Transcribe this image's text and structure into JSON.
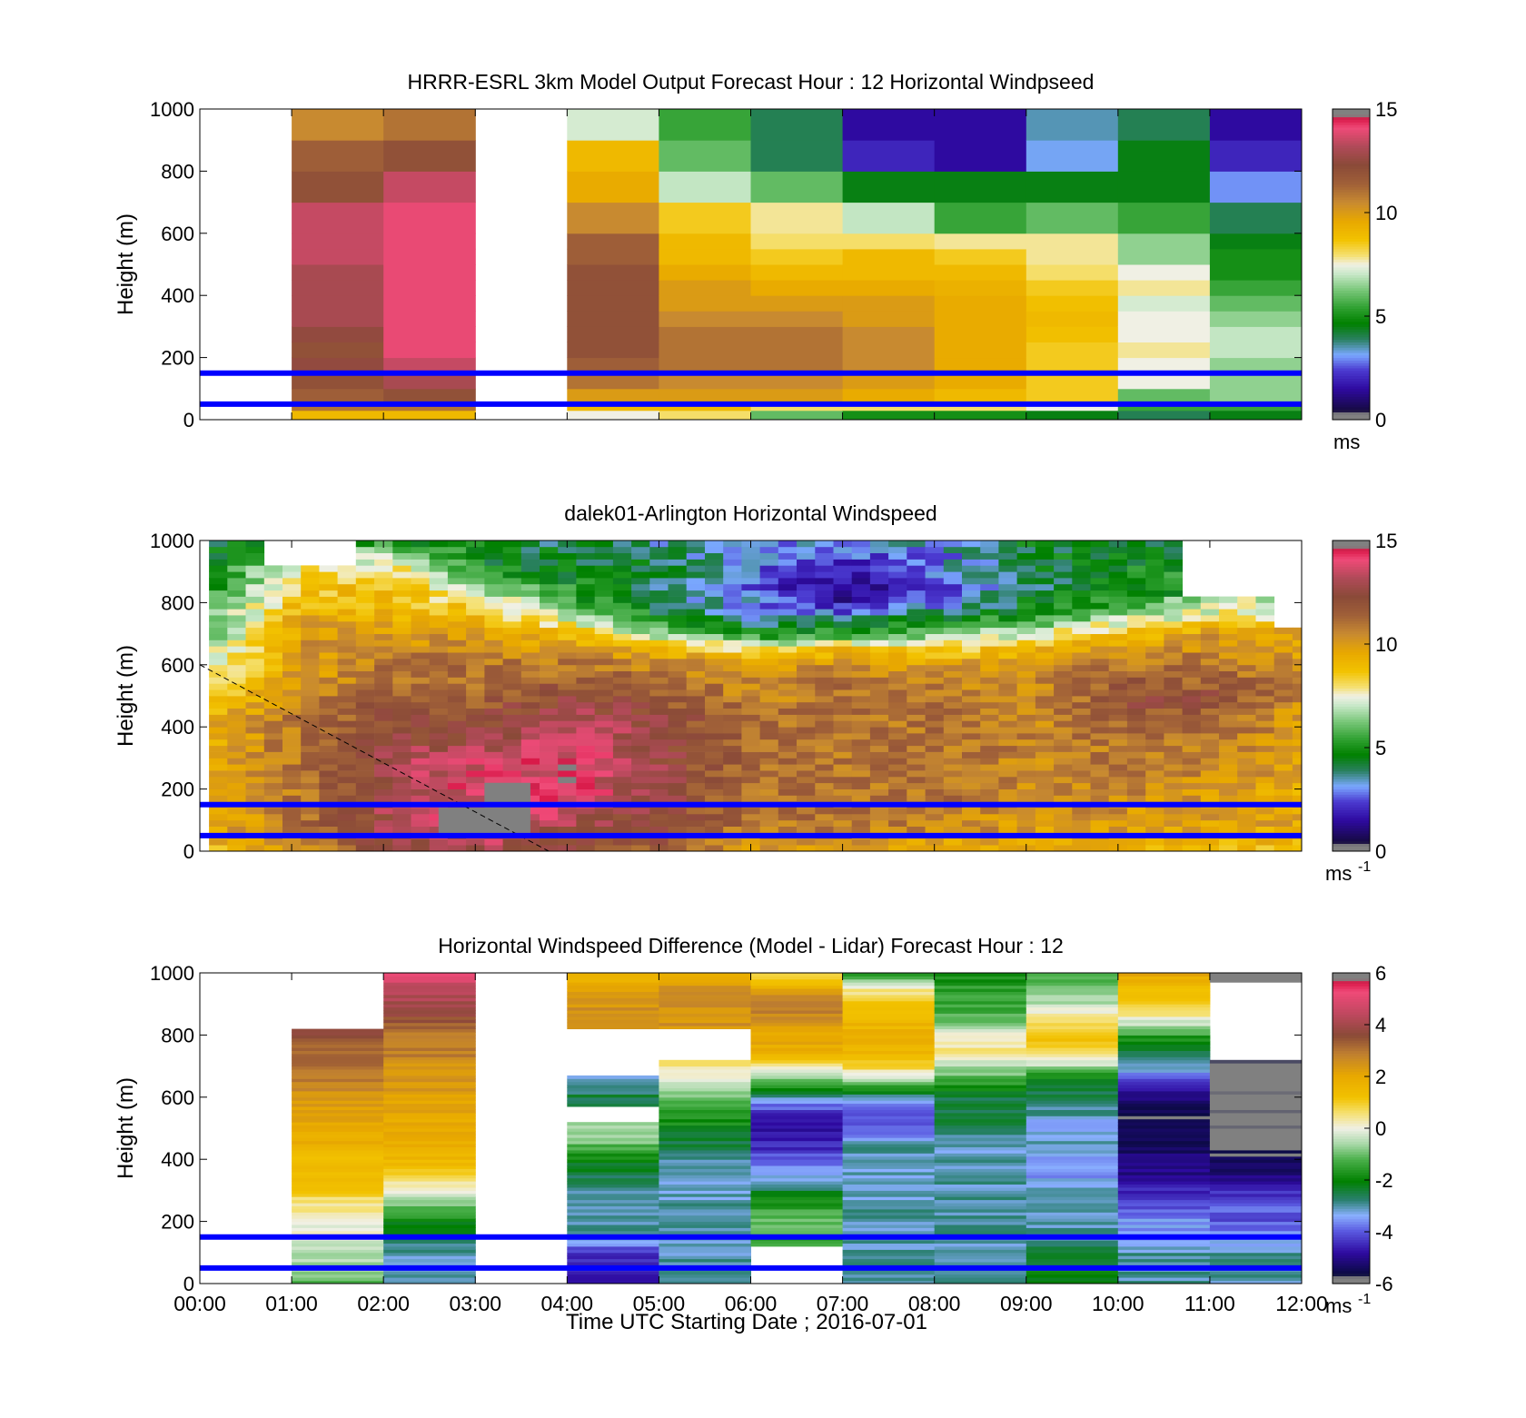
{
  "figure": {
    "xlabel": "Time UTC  Starting Date ; 2016-07-01",
    "x_ticks": [
      "00:00",
      "01:00",
      "02:00",
      "03:00",
      "04:00",
      "05:00",
      "06:00",
      "07:00",
      "08:00",
      "09:00",
      "10:00",
      "11:00",
      "12:00"
    ],
    "background": "#ffffff",
    "reference_line_color": "#0000ff"
  },
  "chart_data": [
    {
      "type": "heatmap",
      "title": "HRRR-ESRL 3km Model Output   Forecast Hour : 12 Horizontal Windpseed",
      "ylabel": "Height (m)",
      "x_range_hours": [
        0,
        12
      ],
      "ylim": [
        0,
        1000
      ],
      "y_ticks": [
        0,
        200,
        400,
        600,
        800,
        1000
      ],
      "colorbar": {
        "label": "ms",
        "label_superscript": "",
        "range": [
          0,
          15
        ],
        "ticks": [
          0,
          5,
          10,
          15
        ]
      },
      "reference_lines_m": [
        50,
        150
      ],
      "cell_boundaries_m": [
        0,
        30,
        60,
        100,
        150,
        200,
        250,
        300,
        350,
        400,
        450,
        500,
        550,
        600,
        700,
        800,
        900,
        1000
      ],
      "columns": [
        {
          "hour": 0,
          "values": null
        },
        {
          "hour": 1,
          "values": [
            9,
            11,
            11.5,
            12,
            12.5,
            12,
            12.5,
            13,
            13,
            13,
            13,
            13.5,
            13.5,
            13.5,
            12,
            11.5,
            10.5
          ]
        },
        {
          "hour": 2,
          "values": [
            9,
            11,
            12,
            13,
            13.5,
            14,
            14,
            14,
            14,
            14,
            14,
            14,
            14,
            14,
            13.5,
            12,
            11
          ]
        },
        {
          "hour": 3,
          "values": null
        },
        {
          "hour": 4,
          "values": [
            7.5,
            9,
            10,
            11,
            11.5,
            12,
            12,
            12,
            12,
            12,
            12,
            11.5,
            11.5,
            10.5,
            9.5,
            9,
            7.2
          ]
        },
        {
          "hour": 5,
          "values": [
            8,
            9,
            10,
            10.5,
            11,
            11,
            11,
            10.5,
            10,
            10,
            9.5,
            9,
            9,
            8.5,
            7,
            6,
            5.5
          ]
        },
        {
          "hour": 6,
          "values": [
            6,
            8,
            10,
            10.5,
            11,
            11,
            11,
            10.5,
            10,
            9.5,
            9,
            8.5,
            8,
            7.8,
            6,
            4,
            4
          ]
        },
        {
          "hour": 7,
          "values": [
            5,
            8,
            9.5,
            10,
            10.5,
            10.5,
            10.5,
            10,
            10,
            9.5,
            9,
            9,
            8,
            7,
            4.5,
            2,
            1.5
          ]
        },
        {
          "hour": 8,
          "values": [
            5,
            8,
            9,
            9.5,
            9.5,
            9.5,
            9.5,
            9.5,
            9.5,
            9.3,
            9,
            8.5,
            7.8,
            5.5,
            4.5,
            1.5,
            1.5
          ]
        },
        {
          "hour": 9,
          "values": [
            4.5,
            7.5,
            8.5,
            8.5,
            8.5,
            8.5,
            8.8,
            9,
            8.8,
            8.5,
            8,
            7.8,
            7.8,
            6,
            4.5,
            3.2,
            3.5
          ]
        },
        {
          "hour": 10,
          "values": [
            4,
            5.5,
            6,
            7.5,
            7.5,
            7.8,
            7.5,
            7.5,
            7.2,
            7.8,
            7.5,
            6.5,
            6.5,
            5.5,
            4.5,
            4.5,
            4
          ]
        },
        {
          "hour": 11,
          "values": [
            4.5,
            5.5,
            6.5,
            6.5,
            6.5,
            7,
            7,
            6.5,
            6,
            5.5,
            5,
            5,
            4.5,
            4,
            3,
            2,
            1.5
          ]
        }
      ]
    },
    {
      "type": "heatmap",
      "title": "dalek01-Arlington  Horizontal Windspeed",
      "ylabel": "Height (m)",
      "x_range_hours": [
        0,
        12
      ],
      "ylim": [
        0,
        1000
      ],
      "y_ticks": [
        0,
        200,
        400,
        600,
        800,
        1000
      ],
      "colorbar": {
        "label": "ms",
        "label_superscript": "-1",
        "range": [
          0,
          15
        ],
        "ticks": [
          0,
          5,
          10,
          15
        ]
      },
      "reference_lines_m": [
        50,
        150
      ],
      "dashed_line": {
        "from": {
          "hour": 0,
          "height_m": 600
        },
        "to": {
          "hour": 3.8,
          "height_m": 0
        }
      },
      "gray_blocks": [
        {
          "hours": [
            2.6,
            3.6
          ],
          "heights_m": [
            50,
            140
          ]
        },
        {
          "hours": [
            3.1,
            3.6
          ],
          "heights_m": [
            140,
            220
          ]
        }
      ],
      "profile_hours": [
        0,
        1,
        2,
        3,
        4,
        5,
        6,
        7,
        8,
        9,
        10,
        11,
        12
      ],
      "heights_m": [
        0,
        50,
        100,
        150,
        200,
        250,
        300,
        350,
        400,
        450,
        500,
        550,
        600,
        650,
        700,
        750,
        800,
        850,
        900,
        950,
        1000
      ],
      "speed_ms": [
        [
          9,
          9.5,
          9.5,
          9.5,
          9.5,
          9.5,
          9.5,
          9.5,
          9.5,
          9,
          8,
          7.5,
          7,
          7,
          6,
          6,
          5.5,
          5,
          4.5,
          4.5,
          4.5
        ],
        [
          10,
          11,
          11,
          11,
          11,
          11,
          11,
          11,
          11,
          11,
          10.5,
          10,
          10,
          10,
          10,
          9.5,
          9,
          8.5,
          8,
          null,
          null
        ],
        [
          12,
          13,
          13,
          13,
          13,
          13,
          13,
          12.5,
          12,
          12,
          11.5,
          11,
          11,
          10.5,
          10,
          9.5,
          9,
          9,
          8.5,
          7,
          5
        ],
        [
          13,
          13.5,
          14,
          14,
          14,
          14,
          13.5,
          13,
          12.5,
          12,
          11.5,
          11,
          11,
          10.5,
          10,
          9,
          8,
          6.5,
          5,
          4.5,
          4.5
        ],
        [
          12,
          12.5,
          13,
          13.5,
          14,
          14,
          14,
          14,
          13.5,
          13,
          12.5,
          11.5,
          11,
          10,
          9,
          7,
          5.5,
          5,
          4.5,
          4.5,
          4
        ],
        [
          11.5,
          12,
          12,
          12.5,
          12.5,
          12.5,
          12.5,
          12.5,
          12.5,
          12,
          11.5,
          11,
          10.5,
          9,
          6.5,
          4.5,
          4,
          4,
          4,
          4,
          3.5
        ],
        [
          10,
          10.5,
          11,
          11,
          11,
          11,
          11,
          11,
          11,
          11,
          10.5,
          10.5,
          10,
          8,
          5,
          3.5,
          3,
          2.5,
          2.5,
          3,
          3
        ],
        [
          9.5,
          10.5,
          11,
          11,
          11,
          11,
          11,
          11,
          11,
          11,
          11,
          11,
          10.5,
          9,
          5.5,
          3.5,
          1.5,
          1,
          1.5,
          2.5,
          3
        ],
        [
          9,
          10.5,
          10.5,
          11,
          11,
          11,
          11,
          11,
          11,
          11,
          11,
          10.5,
          10,
          8.5,
          6,
          4.5,
          3,
          2.5,
          3,
          3,
          3.5
        ],
        [
          9,
          10,
          10,
          10.5,
          10.5,
          10.5,
          10.5,
          10.5,
          10.5,
          10.5,
          10.5,
          10.5,
          10,
          9,
          7.5,
          5.5,
          4.5,
          4,
          4,
          4.5,
          4.5
        ],
        [
          9,
          10,
          10,
          10.5,
          10.5,
          11,
          11,
          11,
          11.5,
          12,
          12,
          11.5,
          11,
          10,
          9,
          7,
          5.5,
          5,
          5,
          4.5,
          4
        ],
        [
          9,
          9.5,
          10,
          10,
          10,
          10.5,
          10.5,
          10.5,
          11,
          11.5,
          12,
          11.5,
          11,
          10.5,
          10,
          8,
          7,
          null,
          null,
          null,
          null
        ],
        [
          9,
          9.5,
          9.5,
          9.5,
          9.5,
          10,
          10,
          10,
          10,
          10,
          10.5,
          10.5,
          10,
          9.5,
          9.5,
          null,
          null,
          null,
          null,
          null,
          null
        ]
      ]
    },
    {
      "type": "heatmap",
      "title": "Horizontal Windspeed Difference (Model - Lidar) Forecast Hour : 12",
      "ylabel": "Height (m)",
      "x_range_hours": [
        0,
        12
      ],
      "ylim": [
        0,
        1000
      ],
      "y_ticks": [
        0,
        200,
        400,
        600,
        800,
        1000
      ],
      "colorbar": {
        "label": "ms",
        "label_superscript": "-1",
        "range": [
          -6,
          6
        ],
        "ticks": [
          -6,
          -4,
          -2,
          0,
          2,
          4,
          6
        ]
      },
      "reference_lines_m": [
        50,
        150
      ],
      "heights_m": [
        0,
        50,
        100,
        150,
        200,
        250,
        300,
        350,
        400,
        450,
        500,
        550,
        600,
        650,
        700,
        750,
        800,
        850,
        900,
        950,
        1000
      ],
      "columns": [
        {
          "hour": 0,
          "values": null
        },
        {
          "hour": 1,
          "values": [
            -1.5,
            -0.5,
            -0.5,
            -0.2,
            0.2,
            0.5,
            1,
            1.5,
            1.5,
            1.8,
            2,
            2.2,
            2.5,
            2.8,
            3,
            3.2,
            3.5,
            null,
            null,
            null,
            null
          ]
        },
        {
          "hour": 2,
          "values": [
            -3,
            -3,
            -3,
            -2.5,
            -2,
            -1,
            0,
            1,
            1.5,
            1.8,
            2,
            2,
            2.2,
            2.5,
            2.5,
            3,
            3,
            3.5,
            4,
            4.5,
            5
          ]
        },
        {
          "hour": 3,
          "values": null
        },
        {
          "hour": 4,
          "values": [
            -4.5,
            -4.5,
            -4.5,
            -3,
            -3,
            -3.2,
            -2.8,
            -2.5,
            -2,
            -1,
            -0.5,
            null,
            -2.5,
            -3,
            null,
            null,
            null,
            2.5,
            2.5,
            2,
            1.8
          ]
        },
        {
          "hour": 5,
          "values": [
            -3,
            -3,
            -3,
            -3,
            -3,
            -3,
            -3.2,
            -3,
            -3,
            -2.5,
            -2,
            -1.5,
            -1,
            0,
            0.5,
            null,
            null,
            2.5,
            2.5,
            2.5,
            2
          ]
        },
        {
          "hour": 6,
          "values": [
            null,
            null,
            null,
            -1.5,
            -1,
            -1.5,
            -2.5,
            -3.5,
            -4,
            -4.5,
            -5,
            -4.5,
            -3,
            -1,
            0.5,
            2,
            2,
            2.5,
            3,
            2,
            0.5
          ]
        },
        {
          "hour": 7,
          "values": [
            -3,
            -3,
            -3,
            -3,
            -3,
            -3,
            -3.2,
            -3.2,
            -3,
            -3,
            -4,
            -4,
            -3,
            -1,
            1,
            1.5,
            1.8,
            1.5,
            1,
            0.5,
            -2
          ]
        },
        {
          "hour": 8,
          "values": [
            -3,
            -3,
            -3,
            -3,
            -3,
            -3,
            -3,
            -3,
            -3,
            -3.2,
            -2.5,
            -2.5,
            -2.5,
            -1.5,
            -0.5,
            0.5,
            0.2,
            -1,
            -1.5,
            -1.5,
            -2
          ]
        },
        {
          "hour": 9,
          "values": [
            -2,
            -2,
            -2.5,
            -3,
            -3,
            -3,
            -3.2,
            -3.5,
            -3.5,
            -3,
            -3.5,
            -3,
            -2.5,
            -2.5,
            -0.5,
            1,
            1.2,
            0.5,
            -0.5,
            -1,
            -1.5
          ]
        },
        {
          "hour": 10,
          "values": [
            -3,
            -3,
            -3,
            -3.5,
            -3.5,
            -4,
            -4.5,
            -5,
            -5,
            -5.5,
            -5.5,
            -5.5,
            -5,
            -4.5,
            -3,
            -2.5,
            -1.5,
            0,
            1,
            1.5,
            2
          ]
        },
        {
          "hour": 11,
          "values": [
            -3,
            -3,
            -3,
            -3.5,
            -4,
            -4,
            -4.5,
            -5,
            -5.5,
            -6,
            -6,
            -6,
            -6,
            -6,
            -6,
            null,
            null,
            null,
            null,
            null,
            -6
          ]
        }
      ]
    }
  ]
}
